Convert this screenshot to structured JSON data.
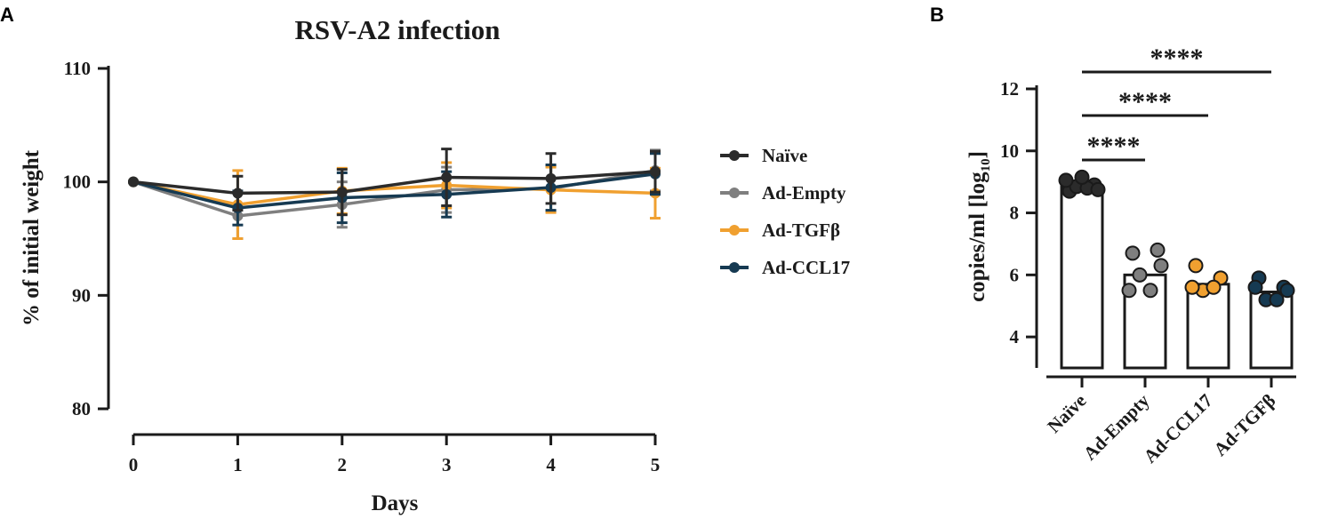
{
  "chart_data": [
    {
      "panel": "A",
      "type": "line",
      "title": "RSV-A2 infection",
      "xlabel": "Days",
      "ylabel": "% of initial weight",
      "x": [
        0,
        1,
        2,
        3,
        4,
        5
      ],
      "xlim": [
        0,
        5
      ],
      "ylim": [
        80,
        110
      ],
      "yticks": [
        80,
        90,
        100,
        110
      ],
      "series": [
        {
          "name": "Naïve",
          "color": "#2b2b2b",
          "values": [
            100,
            99.0,
            99.1,
            100.4,
            100.3,
            100.9
          ],
          "errors": [
            0,
            1.5,
            2.0,
            2.5,
            2.2,
            1.8
          ]
        },
        {
          "name": "Ad-Empty",
          "color": "#7f7f7f",
          "values": [
            100,
            97.0,
            98.0,
            99.3,
            99.4,
            101.0
          ],
          "errors": [
            0,
            2.0,
            2.0,
            2.0,
            2.0,
            1.8
          ]
        },
        {
          "name": "Ad-TGFβ",
          "color": "#f0a030",
          "values": [
            100,
            98.0,
            99.2,
            99.7,
            99.3,
            99.0
          ],
          "errors": [
            0,
            3.0,
            2.0,
            2.0,
            2.0,
            2.2
          ]
        },
        {
          "name": "Ad-CCL17",
          "color": "#163a52",
          "values": [
            100,
            97.7,
            98.6,
            98.9,
            99.5,
            100.7
          ],
          "errors": [
            0,
            1.5,
            2.2,
            2.0,
            2.0,
            1.8
          ]
        }
      ]
    },
    {
      "panel": "B",
      "type": "bar",
      "ylabel": "copies/ml [log",
      "ylabel_sub": "10",
      "ylabel_close": "]",
      "ylim": [
        3,
        12
      ],
      "yticks": [
        4,
        6,
        8,
        10,
        12
      ],
      "categories": [
        "Naïve",
        "Ad-Empty",
        "Ad-CCL17",
        "Ad-TGFβ"
      ],
      "values": [
        8.85,
        6.0,
        5.7,
        5.45
      ],
      "colors": [
        "#2b2b2b",
        "#7f7f7f",
        "#f0a030",
        "#163a52"
      ],
      "points": [
        [
          8.7,
          8.9,
          8.85,
          8.8,
          9.05,
          8.75,
          9.15
        ],
        [
          6.7,
          6.8,
          6.0,
          5.5,
          5.5,
          6.3
        ],
        [
          6.3,
          5.9,
          5.5,
          5.6,
          5.6
        ],
        [
          5.9,
          5.6,
          5.2,
          5.2,
          5.6,
          5.5
        ]
      ],
      "significance": [
        {
          "from": "Naïve",
          "to": "Ad-Empty",
          "label": "****"
        },
        {
          "from": "Naïve",
          "to": "Ad-CCL17",
          "label": "****"
        },
        {
          "from": "Naïve",
          "to": "Ad-TGFβ",
          "label": "****"
        }
      ]
    }
  ],
  "labels": {
    "panel_a": "A",
    "panel_b": "B"
  }
}
